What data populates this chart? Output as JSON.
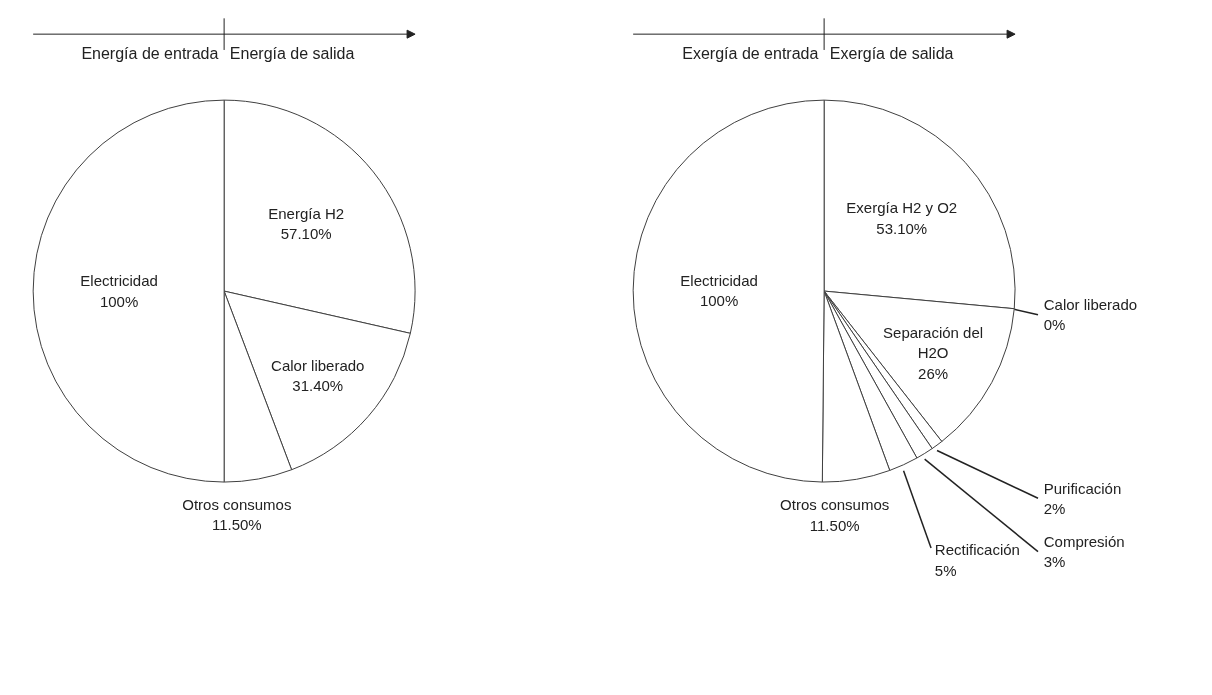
{
  "chart_data": [
    {
      "type": "pie",
      "annotations": [
        "Energía de entrada",
        "Energía de salida"
      ],
      "categories": [
        "Energía H2",
        "Calor liberado",
        "Otros consumos",
        "Electricidad"
      ],
      "values": [
        57.1,
        31.4,
        11.5,
        100
      ],
      "value_labels": [
        "57.10%",
        "31.40%",
        "11.50%",
        "100%"
      ],
      "colors": [
        "#ffffff",
        "#ffffff",
        "#ffffff",
        "#ffffff"
      ]
    },
    {
      "type": "pie",
      "annotations": [
        "Exergía de entrada",
        "Exergía de salida"
      ],
      "categories": [
        "Exergía H2 y O2",
        "Calor liberado",
        "Separación del H2O",
        "Purificación",
        "Compresión",
        "Rectificación",
        "Otros consumos",
        "Electricidad"
      ],
      "values": [
        53.1,
        0,
        26,
        2,
        3,
        5,
        11.5,
        100
      ],
      "value_labels": [
        "53.10%",
        "0%",
        "26%",
        "2%",
        "3%",
        "5%",
        "11.50%",
        "100%"
      ],
      "colors": [
        "#ffffff",
        "#ffffff",
        "#ffffff",
        "#ffffff",
        "#ffffff",
        "#ffffff",
        "#ffffff",
        "#ffffff"
      ]
    }
  ]
}
